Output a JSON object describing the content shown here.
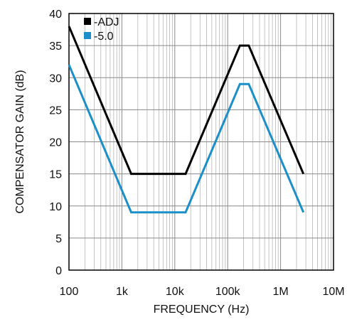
{
  "chart_data": {
    "type": "line",
    "title": "",
    "xlabel": "FREQUENCY (Hz)",
    "ylabel": "COMPENSATOR GAIN (dB)",
    "x_scale": "log",
    "xlim": [
      100,
      10000000
    ],
    "ylim": [
      0,
      40
    ],
    "x_ticks": [
      100,
      1000,
      10000,
      100000,
      1000000,
      10000000
    ],
    "x_tick_labels": [
      "100",
      "1k",
      "10k",
      "100k",
      "1M",
      "10M"
    ],
    "y_ticks": [
      0,
      5,
      10,
      15,
      20,
      25,
      30,
      35,
      40
    ],
    "y_tick_labels": [
      "0",
      "5",
      "10",
      "15",
      "20",
      "25",
      "30",
      "35",
      "40"
    ],
    "grid": true,
    "legend_position": "top-left",
    "series": [
      {
        "name": "-ADJ",
        "color": "#000000",
        "x": [
          100,
          1500,
          16000,
          170000,
          250000,
          2700000
        ],
        "y": [
          38,
          15,
          15,
          35,
          35,
          15
        ]
      },
      {
        "name": "-5.0",
        "color": "#1a8fc9",
        "x": [
          100,
          1500,
          16000,
          170000,
          250000,
          2700000
        ],
        "y": [
          32,
          9,
          9,
          29,
          29,
          9
        ]
      }
    ]
  }
}
